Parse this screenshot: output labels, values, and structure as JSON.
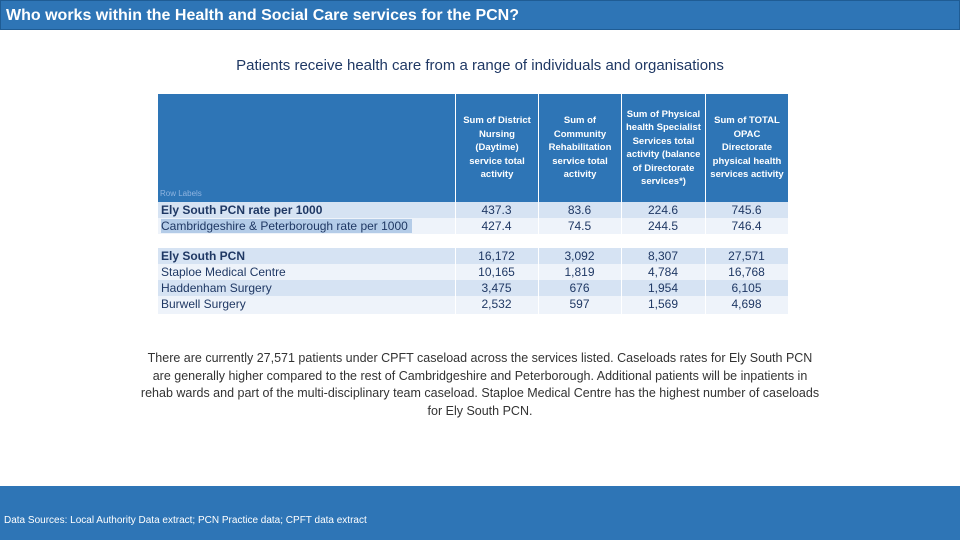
{
  "header": {
    "title": "Who works within the Health and Social Care services for the PCN?"
  },
  "subtitle": "Patients receive health care from a range of individuals and organisations",
  "table": {
    "row_labels_caption": "Row Labels",
    "columns": [
      "Sum of District\nNursing\n(Daytime)\nservice total\nactivity",
      "Sum of\nCommunity\nRehabilitation\nservice total\nactivity",
      "Sum of Physical\nhealth Specialist\nServices total\nactivity (balance\nof Directorate\nservices*)",
      "Sum of TOTAL\nOPAC\nDirectorate\nphysical health\nservices activity"
    ],
    "rate_rows": [
      {
        "label": "Ely South PCN rate per 1000",
        "bold": true,
        "values": [
          "437.3",
          "83.6",
          "224.6",
          "745.6"
        ]
      },
      {
        "label": "Cambridgeshire & Peterborough rate per 1000",
        "bold": false,
        "values": [
          "427.4",
          "74.5",
          "244.5",
          "746.4"
        ]
      }
    ],
    "count_rows": [
      {
        "label": "Ely South PCN",
        "bold": true,
        "values": [
          "16,172",
          "3,092",
          "8,307",
          "27,571"
        ]
      },
      {
        "label": "Staploe Medical Centre",
        "bold": false,
        "values": [
          "10,165",
          "1,819",
          "4,784",
          "16,768"
        ]
      },
      {
        "label": "Haddenham Surgery",
        "bold": false,
        "values": [
          "3,475",
          "676",
          "1,954",
          "6,105"
        ]
      },
      {
        "label": "Burwell Surgery",
        "bold": false,
        "values": [
          "2,532",
          "597",
          "1,569",
          "4,698"
        ]
      }
    ]
  },
  "narrative": "There are currently 27,571 patients under CPFT caseload across the services listed.  Caseloads rates for Ely South PCN are generally higher compared to the rest of Cambridgeshire and Peterborough. Additional patients will be inpatients in rehab wards and part of the multi-disciplinary team caseload. Staploe Medical Centre has the highest number of caseloads for Ely South PCN.",
  "footer": {
    "sources": "Data Sources: Local Authority Data extract; PCN Practice data; CPFT data extract"
  }
}
